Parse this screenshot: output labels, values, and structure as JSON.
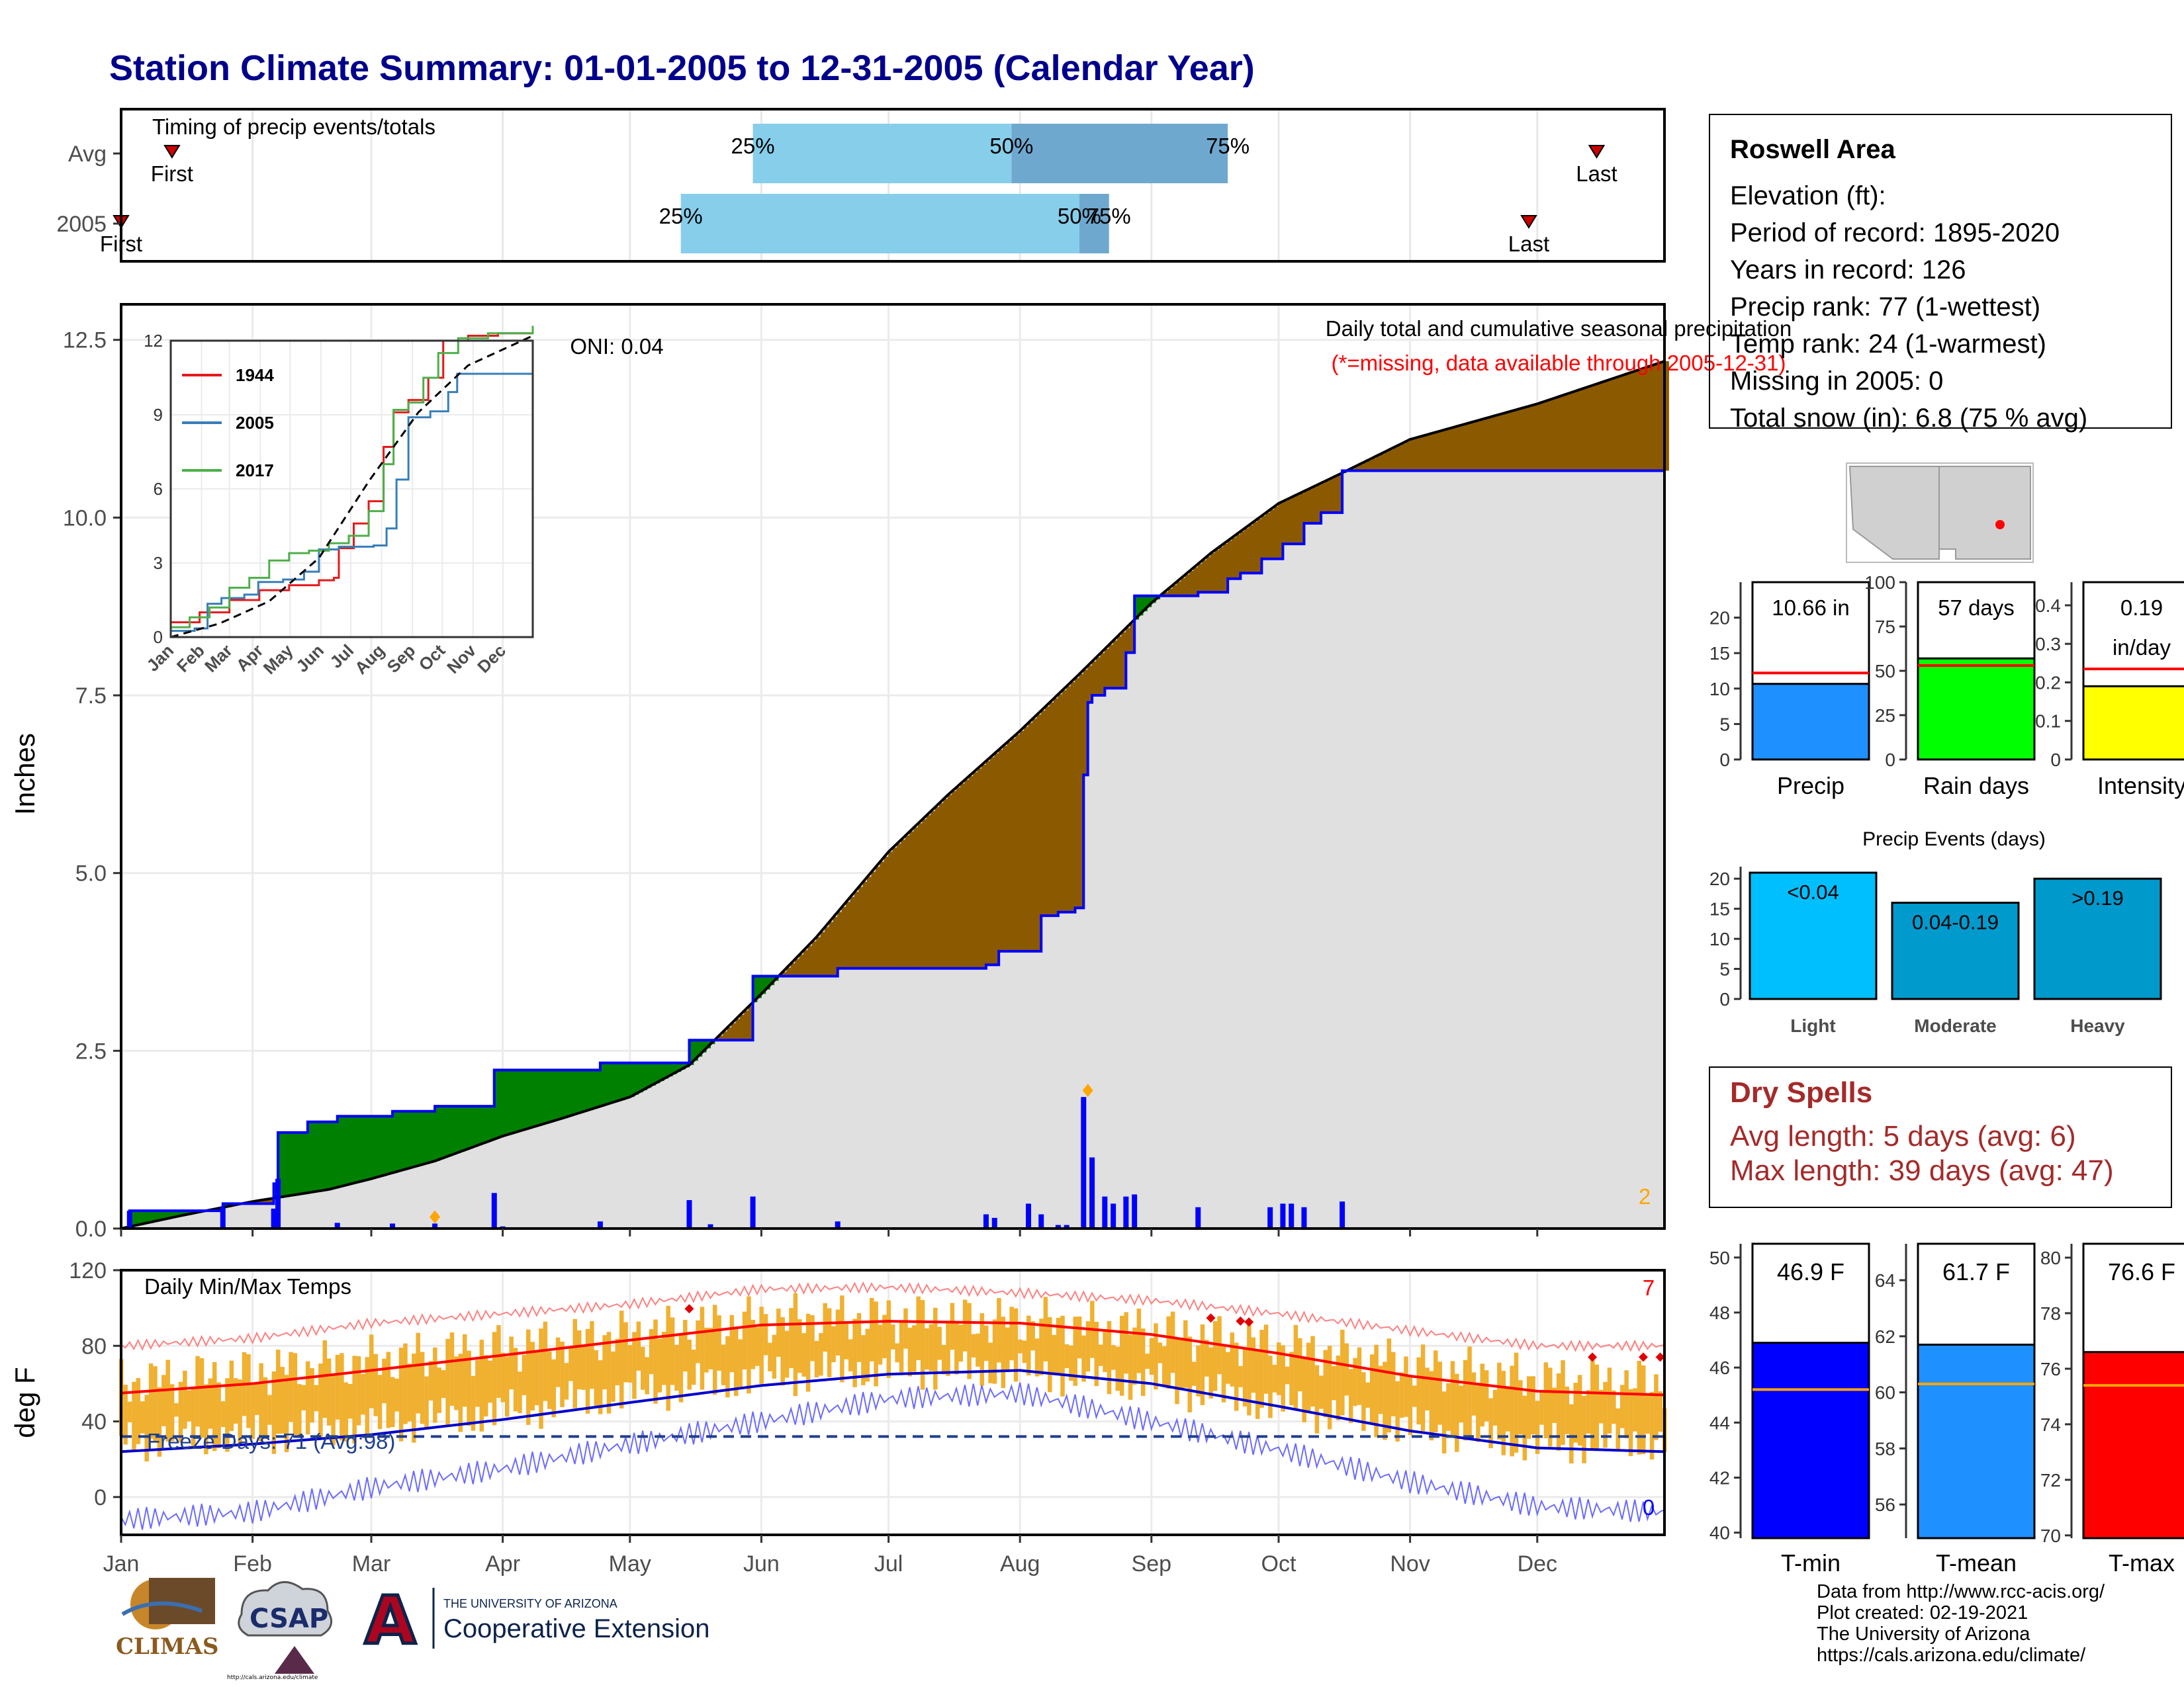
{
  "title": "Station Climate Summary: 01-01-2005 to 12-31-2005 (Calendar Year)",
  "months": [
    "Jan",
    "Feb",
    "Mar",
    "Apr",
    "May",
    "Jun",
    "Jul",
    "Aug",
    "Sep",
    "Oct",
    "Nov",
    "Dec"
  ],
  "colors": {
    "title": "#00008b",
    "timing_light": "#87ceeb",
    "timing_dark": "#6fa8cf",
    "above": "#8b5a00",
    "below": "#008000",
    "avg_fill": "#e0e0e0",
    "precip_line": "#0000ff",
    "temp_bar": "#f0b030",
    "tmax_avg": "#ff0000",
    "tmin_avg": "#0000cd",
    "freeze": "#1f3f8f",
    "dry": "#a52a2a"
  },
  "station": {
    "name": "Roswell Area",
    "elevation": "Elevation (ft):",
    "period": "Period of record: 1895-2020",
    "years": "Years in record: 126",
    "precip_rank": "Precip rank: 77 (1-wettest)",
    "temp_rank": "Temp rank: 24 (1-warmest)",
    "missing": "Missing in 2005: 0",
    "snow": "Total snow (in): 6.8 (75 % avg)"
  },
  "dry_spells": {
    "title": "Dry Spells",
    "avg": "Avg length: 5 days (avg: 6)",
    "max": "Max length: 39 days (avg: 47)"
  },
  "credits": [
    "Data from http://www.rcc-acis.org/",
    "Plot created: 02-19-2021",
    "The University of Arizona",
    "https://cals.arizona.edu/climate/"
  ],
  "logos": {
    "climas": "CLIMAS",
    "csap": "CSAP",
    "csap_url": "http://cals.arizona.edu/climate",
    "ua_small": "THE UNIVERSITY OF ARIZONA",
    "ua_big": "Cooperative Extension",
    "ua_mark": "A"
  },
  "chart_data": [
    {
      "type": "timing",
      "title": "Timing of precip events/totals",
      "rows": [
        {
          "label": "Avg",
          "first_doy": 13,
          "last_doy": 349,
          "p25_doy": 150,
          "p50_doy": 211,
          "p75_doy": 262,
          "first_label": "First",
          "last_label": "Last",
          "p25_label": "25%",
          "p50_label": "50%",
          "p75_label": "75%"
        },
        {
          "label": "2005",
          "first_doy": 1,
          "last_doy": 333,
          "p25_doy": 133,
          "p50_doy": 227,
          "p75_doy": 234,
          "first_label": "First",
          "last_label": "Last",
          "p25_label": "25%",
          "p50_label": "50%",
          "p75_label": "75%"
        }
      ]
    },
    {
      "type": "area",
      "title": "Daily total and cumulative seasonal precipitation",
      "subtitle": "(*=missing, data available through 2005-12-31)",
      "ylabel": "Inches",
      "ylim": [
        0,
        13.0
      ],
      "yticks": [
        0.0,
        2.5,
        5.0,
        7.5,
        10.0,
        12.5
      ],
      "ytick_labels": [
        "0.0",
        "2.5",
        "5.0",
        "7.5",
        "10.0",
        "12.5"
      ],
      "oni": "ONI: 0.04",
      "corner_count": "2",
      "avg_cumulative": {
        "doy": [
          1,
          15,
          32,
          50,
          60,
          75,
          91,
          105,
          121,
          135,
          152,
          165,
          182,
          196,
          213,
          227,
          244,
          258,
          274,
          288,
          305,
          320,
          335,
          350,
          365
        ],
        "values": [
          0.0,
          0.18,
          0.38,
          0.55,
          0.7,
          0.95,
          1.3,
          1.55,
          1.85,
          2.3,
          3.3,
          4.1,
          5.3,
          6.1,
          7.0,
          7.8,
          8.8,
          9.5,
          10.2,
          10.6,
          11.1,
          11.35,
          11.6,
          11.9,
          12.2
        ]
      },
      "cumulative_2005": {
        "doy": [
          1,
          3,
          25,
          37,
          38,
          45,
          52,
          65,
          75,
          89,
          114,
          135,
          150,
          170,
          205,
          208,
          218,
          222,
          226,
          228,
          229,
          230,
          233,
          238,
          240,
          255,
          262,
          265,
          270,
          275,
          280,
          284,
          289,
          365
        ],
        "values": [
          0.0,
          0.25,
          0.35,
          0.63,
          1.35,
          1.5,
          1.58,
          1.65,
          1.72,
          2.23,
          2.33,
          2.65,
          3.55,
          3.66,
          3.71,
          3.9,
          4.4,
          4.45,
          4.51,
          6.38,
          7.4,
          7.5,
          7.6,
          8.1,
          8.9,
          8.95,
          9.14,
          9.22,
          9.42,
          9.63,
          9.92,
          10.07,
          10.66,
          10.66
        ]
      },
      "daily_2005": {
        "doy": [
          3,
          25,
          37,
          38,
          52,
          65,
          75,
          89,
          91,
          114,
          135,
          140,
          150,
          170,
          205,
          207,
          215,
          218,
          222,
          224,
          228,
          230,
          233,
          235,
          238,
          240,
          255,
          272,
          275,
          277,
          280,
          289
        ],
        "values": [
          0.25,
          0.3,
          0.28,
          0.7,
          0.08,
          0.07,
          0.07,
          0.5,
          0.03,
          0.1,
          0.4,
          0.06,
          0.45,
          0.1,
          0.2,
          0.15,
          0.35,
          0.2,
          0.05,
          0.05,
          1.85,
          1.0,
          0.45,
          0.35,
          0.45,
          0.48,
          0.3,
          0.3,
          0.35,
          0.35,
          0.3,
          0.38
        ]
      },
      "snow_markers_doy": [
        75,
        229
      ],
      "inset": {
        "type": "line",
        "ylim": [
          0,
          12
        ],
        "yticks": [
          0,
          3,
          6,
          9,
          12
        ],
        "series": [
          {
            "name": "1944",
            "color": "#e41a1c",
            "doy": [
              1,
              30,
              60,
              90,
              120,
              150,
              165,
              170,
              185,
              200,
              215,
              225,
              240,
              260,
              275,
              300,
              330,
              365
            ],
            "values": [
              0.6,
              1.0,
              1.5,
              1.9,
              2.1,
              2.3,
              2.4,
              3.6,
              4.6,
              5.5,
              7.7,
              9.1,
              9.6,
              10.5,
              12.0,
              12.2,
              12.3,
              12.6
            ]
          },
          {
            "name": "2005",
            "color": "#377eb8",
            "doy": [
              1,
              25,
              38,
              52,
              75,
              89,
              114,
              135,
              150,
              170,
              205,
              218,
              228,
              240,
              262,
              280,
              289,
              365
            ],
            "values": [
              0.25,
              0.35,
              1.35,
              1.58,
              1.72,
              2.23,
              2.33,
              2.65,
              3.55,
              3.66,
              3.71,
              4.4,
              6.38,
              8.9,
              9.14,
              9.92,
              10.66,
              10.66
            ]
          },
          {
            "name": "2017",
            "color": "#4daf4a",
            "doy": [
              1,
              20,
              40,
              60,
              80,
              100,
              120,
              140,
              160,
              180,
              200,
              215,
              225,
              240,
              255,
              270,
              290,
              320,
              365
            ],
            "values": [
              0.4,
              0.8,
              1.2,
              2.0,
              2.4,
              3.1,
              3.4,
              3.5,
              3.8,
              4.1,
              5.1,
              7.0,
              9.2,
              9.5,
              10.5,
              11.5,
              12.1,
              12.3,
              12.6
            ]
          },
          {
            "name": "",
            "color": "#000000",
            "dashed": true,
            "doy": [
              1,
              50,
              100,
              150,
              200,
              250,
              300,
              365
            ],
            "values": [
              0.0,
              0.55,
              1.45,
              3.2,
              6.3,
              9.1,
              11.0,
              12.2
            ]
          }
        ]
      }
    },
    {
      "type": "bar",
      "title": "Daily Min/Max Temps",
      "ylabel": "deg F",
      "ylim": [
        -20,
        120
      ],
      "yticks": [
        0,
        40,
        80,
        120
      ],
      "freeze_label": "Freeze Days: 71 (Avg:98)",
      "freeze_line": 32,
      "count_high": "7",
      "count_low": "0",
      "avg_high": {
        "doy": [
          1,
          32,
          60,
          91,
          121,
          152,
          182,
          213,
          244,
          274,
          305,
          335,
          365
        ],
        "values": [
          55,
          60,
          67,
          75,
          83,
          91,
          93,
          92,
          86,
          76,
          64,
          56,
          54
        ]
      },
      "avg_low": {
        "doy": [
          1,
          32,
          60,
          91,
          121,
          152,
          182,
          213,
          244,
          274,
          305,
          335,
          365
        ],
        "values": [
          24,
          28,
          33,
          41,
          50,
          59,
          65,
          67,
          60,
          48,
          35,
          26,
          24
        ]
      },
      "record_high": {
        "doy": [
          1,
          32,
          60,
          91,
          121,
          152,
          182,
          213,
          244,
          274,
          305,
          335,
          365
        ],
        "values": [
          80,
          84,
          92,
          97,
          102,
          110,
          111,
          108,
          104,
          97,
          88,
          80,
          80
        ]
      },
      "record_low": {
        "doy": [
          1,
          32,
          60,
          91,
          121,
          152,
          182,
          213,
          244,
          274,
          305,
          335,
          365
        ],
        "values": [
          -12,
          -8,
          5,
          15,
          28,
          40,
          52,
          55,
          40,
          25,
          8,
          -5,
          -8
        ]
      },
      "max_2005": {
        "doy": [
          1,
          32,
          60,
          91,
          121,
          152,
          182,
          213,
          244,
          274,
          305,
          335,
          365
        ],
        "values": [
          60,
          66,
          72,
          79,
          86,
          94,
          95,
          93,
          88,
          80,
          70,
          62,
          60
        ]
      },
      "min_2005": {
        "doy": [
          1,
          32,
          60,
          91,
          121,
          152,
          182,
          213,
          244,
          274,
          305,
          335,
          365
        ],
        "values": [
          30,
          33,
          38,
          45,
          55,
          64,
          68,
          67,
          60,
          49,
          37,
          28,
          30
        ]
      },
      "record_markers_doy": [
        135,
        258,
        265,
        267,
        348,
        360,
        364
      ]
    },
    {
      "type": "bar",
      "title": "Precip",
      "value_label": "10.66 in",
      "value": 10.66,
      "avg": 12.2,
      "ylim": [
        0,
        25
      ],
      "yticks": [
        0,
        5,
        10,
        15,
        20
      ],
      "color": "#1e90ff"
    },
    {
      "type": "bar",
      "title": "Rain days",
      "value_label": "57 days",
      "value": 57,
      "avg": 53,
      "ylim": [
        0,
        100
      ],
      "yticks": [
        0,
        25,
        50,
        75,
        100
      ],
      "color": "#00ff00"
    },
    {
      "type": "bar",
      "title": "Intensity",
      "value_label": "0.19",
      "value_label_2": "in/day",
      "value": 0.19,
      "avg": 0.235,
      "ylim": [
        0,
        0.46
      ],
      "yticks": [
        0.0,
        0.1,
        0.2,
        0.3,
        0.4
      ],
      "color": "#ffff00"
    },
    {
      "type": "bar",
      "title": "Precip Events (days)",
      "categories": [
        "Light",
        "Moderate",
        "Heavy"
      ],
      "values": [
        21,
        16,
        20
      ],
      "bar_labels": [
        "<0.04",
        "0.04-0.19",
        ">0.19"
      ],
      "ylim": [
        0,
        22
      ],
      "yticks": [
        0,
        5,
        10,
        15,
        20
      ],
      "colors": [
        "#00bfff",
        "#009acd",
        "#0099cc"
      ]
    },
    {
      "type": "bar",
      "title": "T-min",
      "value_label": "46.9 F",
      "value": 46.9,
      "avg": 45.2,
      "ylim": [
        39.8,
        50.5
      ],
      "yticks": [
        40,
        42,
        44,
        46,
        48,
        50
      ],
      "color": "#0000ff"
    },
    {
      "type": "bar",
      "title": "T-mean",
      "value_label": "61.7 F",
      "value": 61.7,
      "avg": 60.3,
      "ylim": [
        54.8,
        65.3
      ],
      "yticks": [
        56,
        58,
        60,
        62,
        64
      ],
      "color": "#1e90ff"
    },
    {
      "type": "bar",
      "title": "T-max",
      "value_label": "76.6 F",
      "value": 76.6,
      "avg": 75.4,
      "ylim": [
        69.9,
        80.5
      ],
      "yticks": [
        70,
        72,
        74,
        76,
        78,
        80
      ],
      "color": "#ff0000"
    }
  ]
}
